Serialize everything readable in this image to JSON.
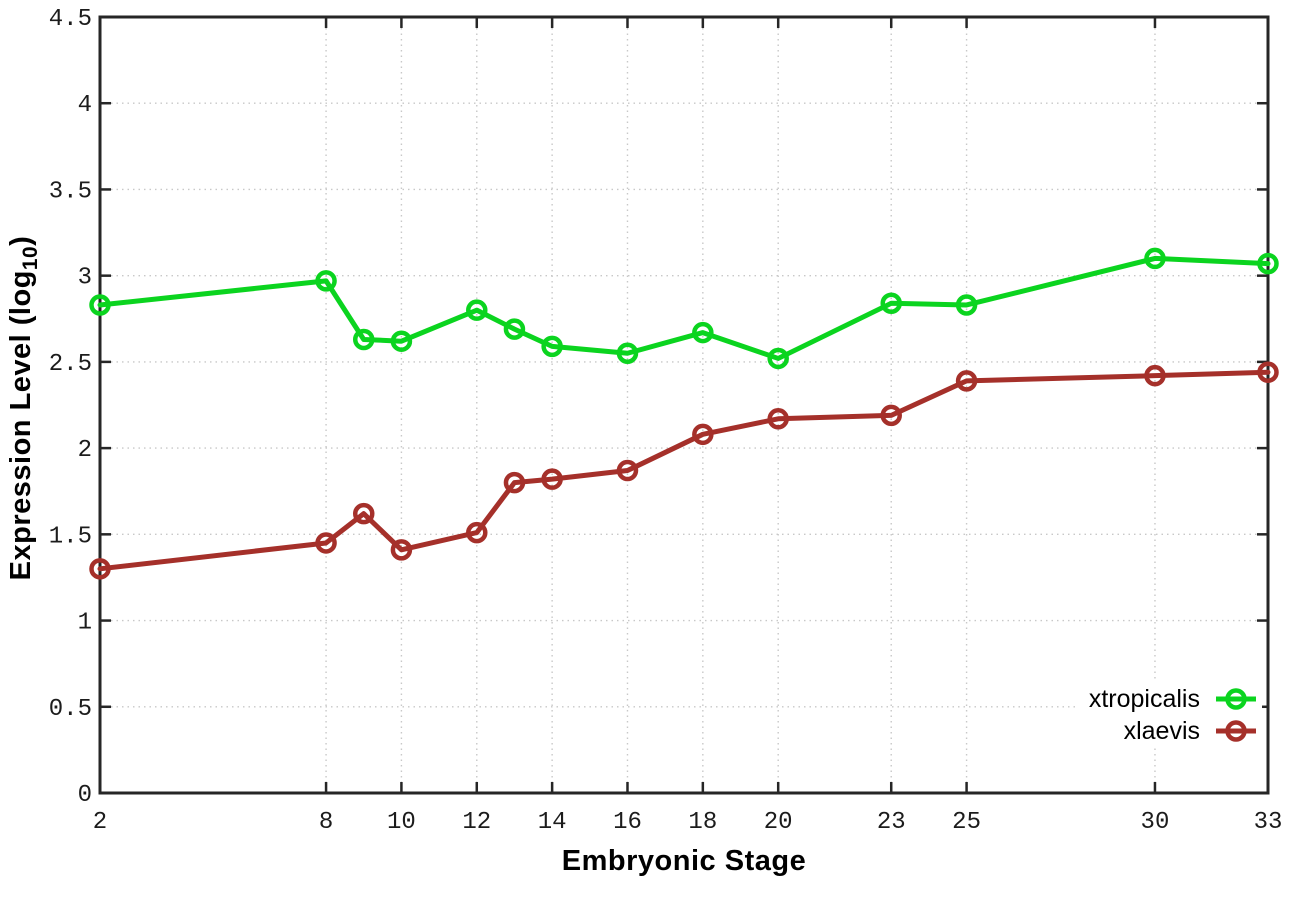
{
  "chart_data": {
    "type": "line",
    "xlabel": "Embryonic Stage",
    "ylabel": "Expression Level (log10)",
    "ylabel_parts": {
      "main": "Expression Level (log",
      "sub": "10",
      "close": ")"
    },
    "x": [
      2,
      8,
      9,
      10,
      12,
      13,
      14,
      16,
      18,
      20,
      23,
      25,
      30,
      33
    ],
    "xticks": [
      2,
      8,
      10,
      12,
      14,
      16,
      18,
      20,
      23,
      25,
      30,
      33
    ],
    "yticks": [
      0,
      0.5,
      1,
      1.5,
      2,
      2.5,
      3,
      3.5,
      4,
      4.5
    ],
    "xlim": [
      2,
      33
    ],
    "ylim": [
      0,
      4.5
    ],
    "grid": true,
    "legend_position": "bottom-right",
    "series": [
      {
        "name": "xtropicalis",
        "color": "#0bd41f",
        "values": [
          2.83,
          2.97,
          2.63,
          2.62,
          2.8,
          2.69,
          2.59,
          2.55,
          2.67,
          2.52,
          2.84,
          2.83,
          3.1,
          3.07
        ]
      },
      {
        "name": "xlaevis",
        "color": "#a5302a",
        "values": [
          1.3,
          1.45,
          1.62,
          1.41,
          1.51,
          1.8,
          1.82,
          1.87,
          2.08,
          2.17,
          2.19,
          2.39,
          2.42,
          2.44
        ]
      }
    ],
    "style": {
      "grid_color": "#c8c8c8",
      "border_color": "#262626",
      "line_width": 5,
      "marker_radius": 8.5,
      "marker_stroke": 4.5
    }
  }
}
